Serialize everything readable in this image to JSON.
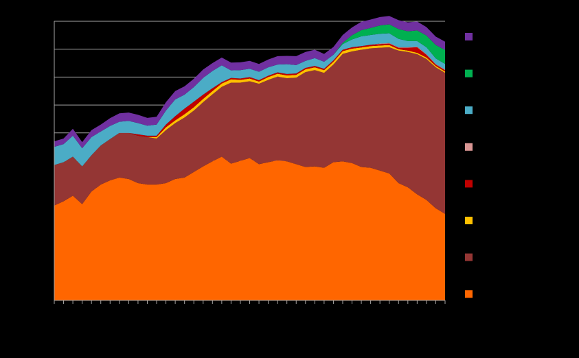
{
  "chart_data": {
    "type": "area",
    "stacked": true,
    "title": "",
    "xlabel": "",
    "ylabel": "",
    "ylim": [
      0,
      10
    ],
    "grid": true,
    "legend_position": "right",
    "x": [
      0,
      1,
      2,
      3,
      4,
      5,
      6,
      7,
      8,
      9,
      10,
      11,
      12,
      13,
      14,
      15,
      16,
      17,
      18,
      19,
      20,
      21,
      22,
      23,
      24,
      25,
      26,
      27,
      28,
      29,
      30,
      31,
      32,
      33,
      34,
      35,
      36,
      37,
      38,
      39,
      40,
      41,
      42
    ],
    "series": [
      {
        "color": "#FF6600",
        "values": [
          3.4,
          3.55,
          3.75,
          3.45,
          3.9,
          4.15,
          4.3,
          4.4,
          4.35,
          4.2,
          4.15,
          4.15,
          4.2,
          4.35,
          4.4,
          4.6,
          4.8,
          4.98,
          5.15,
          4.9,
          5.0,
          5.1,
          4.88,
          4.95,
          5.02,
          4.98,
          4.88,
          4.78,
          4.8,
          4.75,
          4.95,
          4.98,
          4.92,
          4.78,
          4.75,
          4.65,
          4.55,
          4.2,
          4.05,
          3.8,
          3.6,
          3.3,
          3.1
        ]
      },
      {
        "color": "#943634",
        "values": [
          1.45,
          1.4,
          1.4,
          1.35,
          1.3,
          1.4,
          1.48,
          1.6,
          1.65,
          1.7,
          1.7,
          1.65,
          1.9,
          2.0,
          2.15,
          2.2,
          2.3,
          2.4,
          2.5,
          2.9,
          2.8,
          2.75,
          2.88,
          2.95,
          3.0,
          2.98,
          3.1,
          3.4,
          3.45,
          3.4,
          3.5,
          3.85,
          4.0,
          4.2,
          4.28,
          4.4,
          4.52,
          4.75,
          4.85,
          5.02,
          5.05,
          5.05,
          5.05
        ]
      },
      {
        "color": "#FFC000",
        "values": [
          0,
          0,
          0,
          0,
          0,
          0,
          0,
          0,
          0,
          0,
          0,
          0.05,
          0.1,
          0.1,
          0.12,
          0.12,
          0.12,
          0.12,
          0.12,
          0.12,
          0.1,
          0.1,
          0.08,
          0.1,
          0.1,
          0.1,
          0.1,
          0.1,
          0.1,
          0.1,
          0.1,
          0.1,
          0.1,
          0.08,
          0.08,
          0.08,
          0.08,
          0.05,
          0.05,
          0.05,
          0.05,
          0.05,
          0.05
        ]
      },
      {
        "color": "#C00000",
        "values": [
          0,
          0,
          0,
          0,
          0,
          0,
          0,
          0,
          0,
          0.05,
          0.05,
          0.05,
          0.1,
          0.15,
          0.2,
          0.2,
          0.15,
          0.1,
          0.05,
          0.05,
          0.05,
          0.05,
          0.05,
          0.05,
          0.05,
          0.05,
          0.05,
          0.05,
          0.05,
          0.05,
          0.05,
          0.05,
          0.05,
          0.05,
          0.05,
          0.05,
          0.05,
          0.05,
          0.1,
          0.2,
          0.1,
          0.05,
          0.05
        ]
      },
      {
        "color": "#D99694",
        "values": [
          0,
          0,
          0,
          0,
          0,
          0,
          0,
          0,
          0,
          0,
          0,
          0,
          0,
          0,
          0,
          0,
          0,
          0,
          0,
          0,
          0,
          0,
          0,
          0,
          0,
          0,
          0,
          0,
          0,
          0,
          0,
          0,
          0,
          0,
          0,
          0.02,
          0.02,
          0.02,
          0.02,
          0.02,
          0.02,
          0.02,
          0.02
        ]
      },
      {
        "color": "#4BACC6",
        "values": [
          0.65,
          0.65,
          0.75,
          0.65,
          0.65,
          0.5,
          0.47,
          0.4,
          0.43,
          0.4,
          0.36,
          0.4,
          0.5,
          0.6,
          0.5,
          0.52,
          0.6,
          0.62,
          0.6,
          0.27,
          0.3,
          0.3,
          0.3,
          0.3,
          0.28,
          0.35,
          0.3,
          0.25,
          0.28,
          0.25,
          0.2,
          0.2,
          0.28,
          0.35,
          0.35,
          0.35,
          0.35,
          0.3,
          0.22,
          0.2,
          0.25,
          0.2,
          0.2
        ]
      },
      {
        "color": "#00B050",
        "values": [
          0,
          0,
          0,
          0,
          0,
          0,
          0,
          0,
          0,
          0,
          0,
          0,
          0,
          0,
          0,
          0,
          0,
          0,
          0,
          0,
          0,
          0,
          0,
          0,
          0,
          0,
          0,
          0,
          0,
          0,
          0,
          0.05,
          0.15,
          0.22,
          0.25,
          0.3,
          0.32,
          0.35,
          0.35,
          0.38,
          0.42,
          0.48,
          0.5
        ]
      },
      {
        "color": "#7030A0",
        "values": [
          0.2,
          0.2,
          0.25,
          0.22,
          0.25,
          0.25,
          0.28,
          0.3,
          0.3,
          0.3,
          0.28,
          0.28,
          0.3,
          0.3,
          0.3,
          0.3,
          0.3,
          0.28,
          0.28,
          0.28,
          0.28,
          0.28,
          0.28,
          0.28,
          0.3,
          0.3,
          0.32,
          0.32,
          0.3,
          0.28,
          0.28,
          0.28,
          0.28,
          0.3,
          0.3,
          0.3,
          0.3,
          0.32,
          0.32,
          0.32,
          0.3,
          0.3,
          0.3
        ]
      }
    ]
  }
}
